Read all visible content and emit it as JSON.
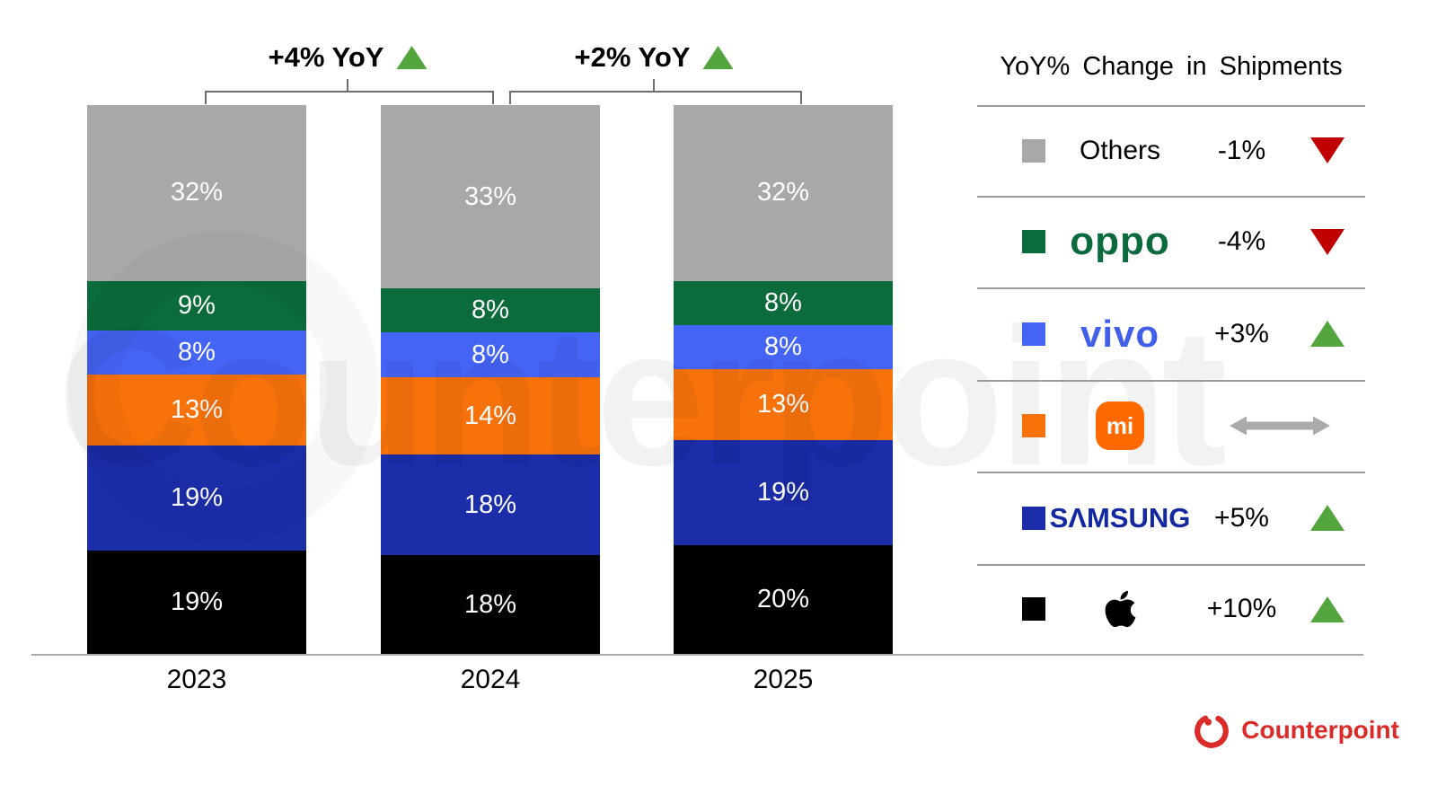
{
  "chart_data": {
    "type": "bar",
    "stacked": true,
    "categories": [
      "2023",
      "2024",
      "2025"
    ],
    "stack_order": "bottom-to-top",
    "value_suffix": "%",
    "series": [
      {
        "name": "Apple",
        "color": "#000000",
        "values": [
          19,
          18,
          20
        ]
      },
      {
        "name": "Samsung",
        "color": "#1B2DA9",
        "values": [
          19,
          18,
          19
        ]
      },
      {
        "name": "Xiaomi",
        "color": "#F8720C",
        "values": [
          13,
          14,
          13
        ]
      },
      {
        "name": "vivo",
        "color": "#4464F6",
        "values": [
          8,
          8,
          8
        ]
      },
      {
        "name": "OPPO",
        "color": "#0B6B3A",
        "values": [
          9,
          8,
          8
        ]
      },
      {
        "name": "Others",
        "color": "#A8A8A8",
        "values": [
          32,
          33,
          32
        ]
      }
    ],
    "xlabel": "",
    "ylabel": "",
    "grid": false,
    "legend_position": "right",
    "annotations": [
      {
        "label": "+4% YoY",
        "direction": "up",
        "between": [
          "2023",
          "2024"
        ]
      },
      {
        "label": "+2% YoY",
        "direction": "up",
        "between": [
          "2024",
          "2025"
        ]
      }
    ]
  },
  "legend": {
    "title": "YoY% Change in Shipments",
    "rows": [
      {
        "brand": "Others",
        "logo": "text",
        "logo_text": "Others",
        "color": "#A8A8A8",
        "change": "-1%",
        "direction": "down"
      },
      {
        "brand": "OPPO",
        "logo": "oppo",
        "logo_text": "oppo",
        "color": "#0B6B3A",
        "change": "-4%",
        "direction": "down"
      },
      {
        "brand": "vivo",
        "logo": "vivo",
        "logo_text": "vivo",
        "color": "#4464F6",
        "change": "+3%",
        "direction": "up"
      },
      {
        "brand": "Xiaomi",
        "logo": "mi",
        "logo_text": "mi",
        "color": "#F8720C",
        "change": "",
        "direction": "flat"
      },
      {
        "brand": "Samsung",
        "logo": "samsung",
        "logo_text": "SAMSUNG",
        "color": "#1B2DA9",
        "change": "+5%",
        "direction": "up"
      },
      {
        "brand": "Apple",
        "logo": "apple",
        "logo_text": "",
        "color": "#000000",
        "change": "+10%",
        "direction": "up"
      }
    ]
  },
  "footer": {
    "brand": "Counterpoint"
  },
  "watermark": "Counterpoint",
  "colors": {
    "up_green": "#53A63E",
    "down_red": "#C00000",
    "flat_gray": "#ABABAB",
    "axis_gray": "#A9A9A9",
    "bracket_gray": "#6E6E6E",
    "divider_gray": "#9A9A9A",
    "counterpoint_red": "#DB2B28",
    "oppo_logo_green": "#0B6B3F",
    "vivo_logo_blue": "#415FE8",
    "samsung_logo_blue": "#1428A0",
    "mi_badge_orange": "#FF6900",
    "bar_label_white": "#FFFFFF"
  }
}
